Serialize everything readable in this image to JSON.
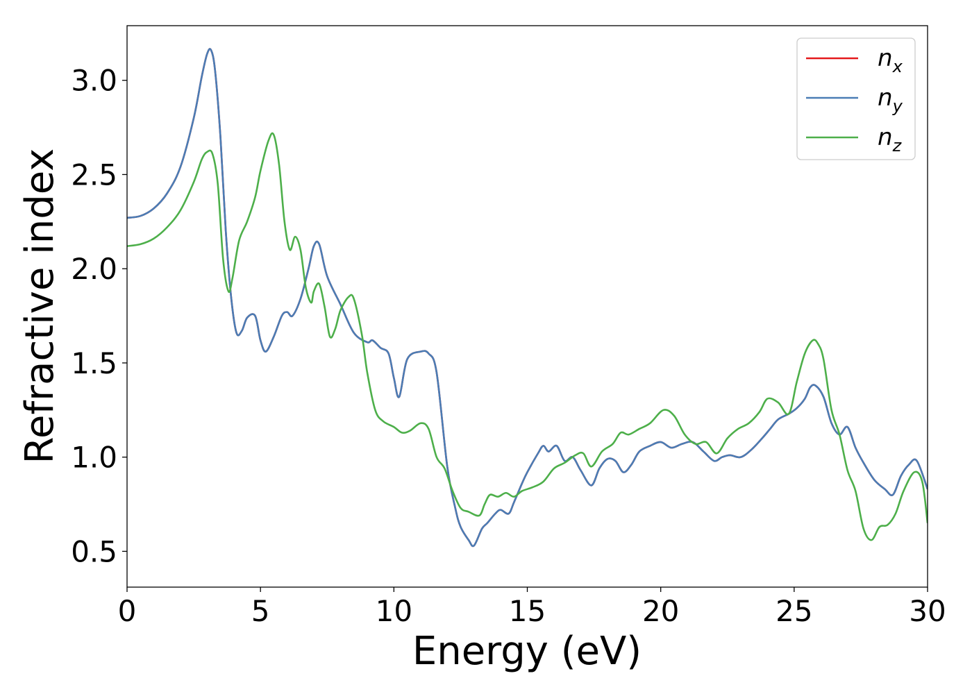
{
  "chart_data": {
    "type": "line",
    "title": "",
    "xlabel": "Energy (eV)",
    "ylabel": "Refractive index",
    "xlim": [
      0,
      30
    ],
    "ylim": [
      0.31,
      3.29
    ],
    "xticks": [
      0,
      5,
      10,
      15,
      20,
      25,
      30
    ],
    "yticks": [
      0.5,
      1.0,
      1.5,
      2.0,
      2.5,
      3.0
    ],
    "grid": false,
    "legend": {
      "placement": "top-right"
    },
    "series": [
      {
        "name": "n",
        "subscript": "x",
        "color": "#e41a1c",
        "x": [
          0,
          0.5,
          1,
          1.5,
          2,
          2.5,
          2.8,
          3.0,
          3.15,
          3.3,
          3.5,
          3.7,
          3.9,
          4.1,
          4.3,
          4.5,
          4.8,
          5.0,
          5.2,
          5.5,
          5.8,
          6.0,
          6.2,
          6.5,
          6.8,
          7.0,
          7.2,
          7.5,
          8.0,
          8.5,
          9.0,
          9.2,
          9.5,
          9.8,
          10.0,
          10.2,
          10.5,
          11.0,
          11.3,
          11.6,
          12.0,
          12.3,
          12.5,
          12.8,
          13.0,
          13.3,
          13.5,
          13.8,
          14.0,
          14.3,
          14.5,
          14.8,
          15.0,
          15.4,
          15.6,
          15.8,
          16.1,
          16.4,
          16.7,
          17.0,
          17.4,
          17.7,
          18.0,
          18.3,
          18.6,
          18.9,
          19.2,
          19.6,
          20.0,
          20.4,
          20.8,
          21.2,
          21.6,
          22.0,
          22.3,
          22.6,
          23.0,
          23.4,
          23.8,
          24.1,
          24.4,
          24.8,
          25.1,
          25.4,
          25.6,
          25.8,
          26.1,
          26.4,
          26.7,
          27.0,
          27.3,
          27.6,
          28.0,
          28.4,
          28.7,
          29.0,
          29.3,
          29.6,
          30.0
        ],
        "values": [
          2.27,
          2.28,
          2.32,
          2.4,
          2.54,
          2.8,
          3.02,
          3.14,
          3.16,
          3.05,
          2.7,
          2.2,
          1.85,
          1.66,
          1.67,
          1.74,
          1.75,
          1.62,
          1.56,
          1.64,
          1.75,
          1.77,
          1.75,
          1.84,
          2.0,
          2.12,
          2.13,
          1.96,
          1.81,
          1.66,
          1.61,
          1.62,
          1.58,
          1.55,
          1.42,
          1.32,
          1.52,
          1.56,
          1.55,
          1.45,
          0.95,
          0.73,
          0.63,
          0.56,
          0.53,
          0.62,
          0.65,
          0.7,
          0.72,
          0.7,
          0.76,
          0.86,
          0.92,
          1.02,
          1.06,
          1.03,
          1.06,
          0.98,
          1.0,
          0.93,
          0.85,
          0.94,
          0.99,
          0.98,
          0.92,
          0.96,
          1.03,
          1.06,
          1.08,
          1.05,
          1.07,
          1.08,
          1.03,
          0.98,
          1.0,
          1.01,
          1.0,
          1.04,
          1.1,
          1.15,
          1.2,
          1.23,
          1.26,
          1.31,
          1.37,
          1.38,
          1.32,
          1.18,
          1.12,
          1.16,
          1.05,
          0.97,
          0.88,
          0.83,
          0.8,
          0.9,
          0.96,
          0.98,
          0.83
        ]
      },
      {
        "name": "n",
        "subscript": "y",
        "color": "#4a7db5",
        "x": [
          0,
          0.5,
          1,
          1.5,
          2,
          2.5,
          2.8,
          3.0,
          3.15,
          3.3,
          3.5,
          3.7,
          3.9,
          4.1,
          4.3,
          4.5,
          4.8,
          5.0,
          5.2,
          5.5,
          5.8,
          6.0,
          6.2,
          6.5,
          6.8,
          7.0,
          7.2,
          7.5,
          8.0,
          8.5,
          9.0,
          9.2,
          9.5,
          9.8,
          10.0,
          10.2,
          10.5,
          11.0,
          11.3,
          11.6,
          12.0,
          12.3,
          12.5,
          12.8,
          13.0,
          13.3,
          13.5,
          13.8,
          14.0,
          14.3,
          14.5,
          14.8,
          15.0,
          15.4,
          15.6,
          15.8,
          16.1,
          16.4,
          16.7,
          17.0,
          17.4,
          17.7,
          18.0,
          18.3,
          18.6,
          18.9,
          19.2,
          19.6,
          20.0,
          20.4,
          20.8,
          21.2,
          21.6,
          22.0,
          22.3,
          22.6,
          23.0,
          23.4,
          23.8,
          24.1,
          24.4,
          24.8,
          25.1,
          25.4,
          25.6,
          25.8,
          26.1,
          26.4,
          26.7,
          27.0,
          27.3,
          27.6,
          28.0,
          28.4,
          28.7,
          29.0,
          29.3,
          29.6,
          30.0
        ],
        "values": [
          2.27,
          2.28,
          2.32,
          2.4,
          2.54,
          2.8,
          3.02,
          3.14,
          3.16,
          3.05,
          2.7,
          2.2,
          1.85,
          1.66,
          1.67,
          1.74,
          1.75,
          1.62,
          1.56,
          1.64,
          1.75,
          1.77,
          1.75,
          1.84,
          2.0,
          2.12,
          2.13,
          1.96,
          1.81,
          1.66,
          1.61,
          1.62,
          1.58,
          1.55,
          1.42,
          1.32,
          1.52,
          1.56,
          1.55,
          1.45,
          0.95,
          0.73,
          0.63,
          0.56,
          0.53,
          0.62,
          0.65,
          0.7,
          0.72,
          0.7,
          0.76,
          0.86,
          0.92,
          1.02,
          1.06,
          1.03,
          1.06,
          0.98,
          1.0,
          0.93,
          0.85,
          0.94,
          0.99,
          0.98,
          0.92,
          0.96,
          1.03,
          1.06,
          1.08,
          1.05,
          1.07,
          1.08,
          1.03,
          0.98,
          1.0,
          1.01,
          1.0,
          1.04,
          1.1,
          1.15,
          1.2,
          1.23,
          1.26,
          1.31,
          1.37,
          1.38,
          1.32,
          1.18,
          1.12,
          1.16,
          1.05,
          0.97,
          0.88,
          0.83,
          0.8,
          0.9,
          0.96,
          0.98,
          0.83
        ]
      },
      {
        "name": "n",
        "subscript": "z",
        "color": "#4daf4a",
        "x": [
          0,
          0.5,
          1,
          1.5,
          2,
          2.5,
          2.8,
          3.0,
          3.2,
          3.4,
          3.6,
          3.8,
          3.95,
          4.2,
          4.5,
          4.8,
          5.0,
          5.3,
          5.5,
          5.7,
          5.9,
          6.1,
          6.3,
          6.5,
          6.7,
          6.9,
          7.0,
          7.2,
          7.4,
          7.6,
          7.8,
          8.0,
          8.3,
          8.5,
          8.8,
          9.0,
          9.3,
          9.6,
          10.0,
          10.3,
          10.6,
          11.0,
          11.3,
          11.6,
          11.9,
          12.2,
          12.5,
          12.8,
          13.2,
          13.4,
          13.6,
          13.9,
          14.2,
          14.5,
          14.8,
          15.2,
          15.6,
          16.0,
          16.4,
          16.8,
          17.1,
          17.4,
          17.8,
          18.2,
          18.5,
          18.8,
          19.2,
          19.6,
          20.1,
          20.5,
          20.9,
          21.3,
          21.7,
          22.1,
          22.5,
          22.9,
          23.3,
          23.7,
          24.0,
          24.4,
          24.8,
          25.1,
          25.4,
          25.7,
          25.9,
          26.1,
          26.4,
          26.7,
          27.0,
          27.3,
          27.6,
          27.9,
          28.2,
          28.5,
          28.8,
          29.1,
          29.5,
          29.8,
          30.0
        ],
        "values": [
          2.12,
          2.13,
          2.16,
          2.22,
          2.31,
          2.46,
          2.58,
          2.62,
          2.61,
          2.45,
          2.05,
          1.88,
          1.95,
          2.15,
          2.25,
          2.38,
          2.52,
          2.68,
          2.71,
          2.55,
          2.25,
          2.1,
          2.17,
          2.1,
          1.9,
          1.82,
          1.88,
          1.92,
          1.8,
          1.64,
          1.68,
          1.78,
          1.85,
          1.84,
          1.65,
          1.45,
          1.25,
          1.19,
          1.16,
          1.13,
          1.14,
          1.18,
          1.15,
          1.0,
          0.94,
          0.82,
          0.73,
          0.71,
          0.69,
          0.75,
          0.8,
          0.79,
          0.81,
          0.79,
          0.82,
          0.84,
          0.87,
          0.94,
          0.97,
          1.01,
          1.02,
          0.95,
          1.03,
          1.07,
          1.13,
          1.12,
          1.15,
          1.18,
          1.25,
          1.22,
          1.12,
          1.07,
          1.08,
          1.02,
          1.1,
          1.15,
          1.18,
          1.24,
          1.31,
          1.29,
          1.23,
          1.4,
          1.55,
          1.62,
          1.6,
          1.52,
          1.25,
          1.12,
          0.93,
          0.82,
          0.62,
          0.56,
          0.63,
          0.64,
          0.7,
          0.82,
          0.92,
          0.87,
          0.65
        ]
      }
    ]
  }
}
